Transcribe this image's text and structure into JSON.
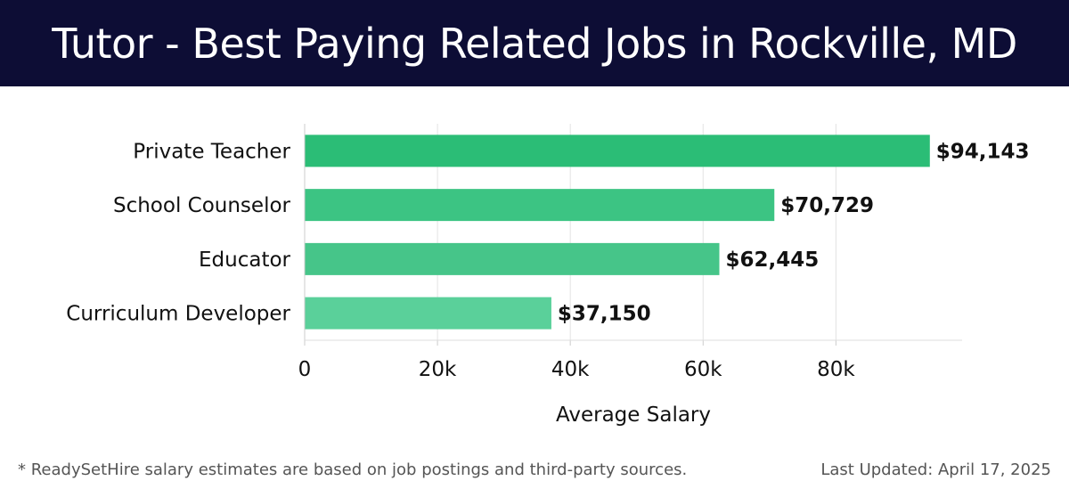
{
  "header": {
    "title": "Tutor - Best Paying Related Jobs in Rockville, MD"
  },
  "footer": {
    "note": "* ReadySetHire salary estimates are based on job postings and third-party sources.",
    "updated": "Last Updated: April 17, 2025"
  },
  "colors": {
    "header_bg": "#0d0d35",
    "header_text": "#ffffff",
    "bar_colors": [
      "#2bbd76",
      "#3cc483",
      "#46c589",
      "#5ad09a"
    ],
    "grid": "#e3e3e3",
    "text": "#111111"
  },
  "chart_data": {
    "type": "bar",
    "orientation": "horizontal",
    "categories": [
      "Private Teacher",
      "School Counselor",
      "Educator",
      "Curriculum Developer"
    ],
    "values": [
      94143,
      70729,
      62445,
      37150
    ],
    "value_labels": [
      "$94,143",
      "$70,729",
      "$62,445",
      "$37,150"
    ],
    "xlabel": "Average Salary",
    "ylabel": "",
    "xticks": [
      {
        "value": 0,
        "label": "0"
      },
      {
        "value": 20000,
        "label": "20k"
      },
      {
        "value": 40000,
        "label": "40k"
      },
      {
        "value": 60000,
        "label": "60k"
      },
      {
        "value": 80000,
        "label": "80k"
      }
    ],
    "xlim": [
      0,
      99000
    ],
    "grid": true
  }
}
